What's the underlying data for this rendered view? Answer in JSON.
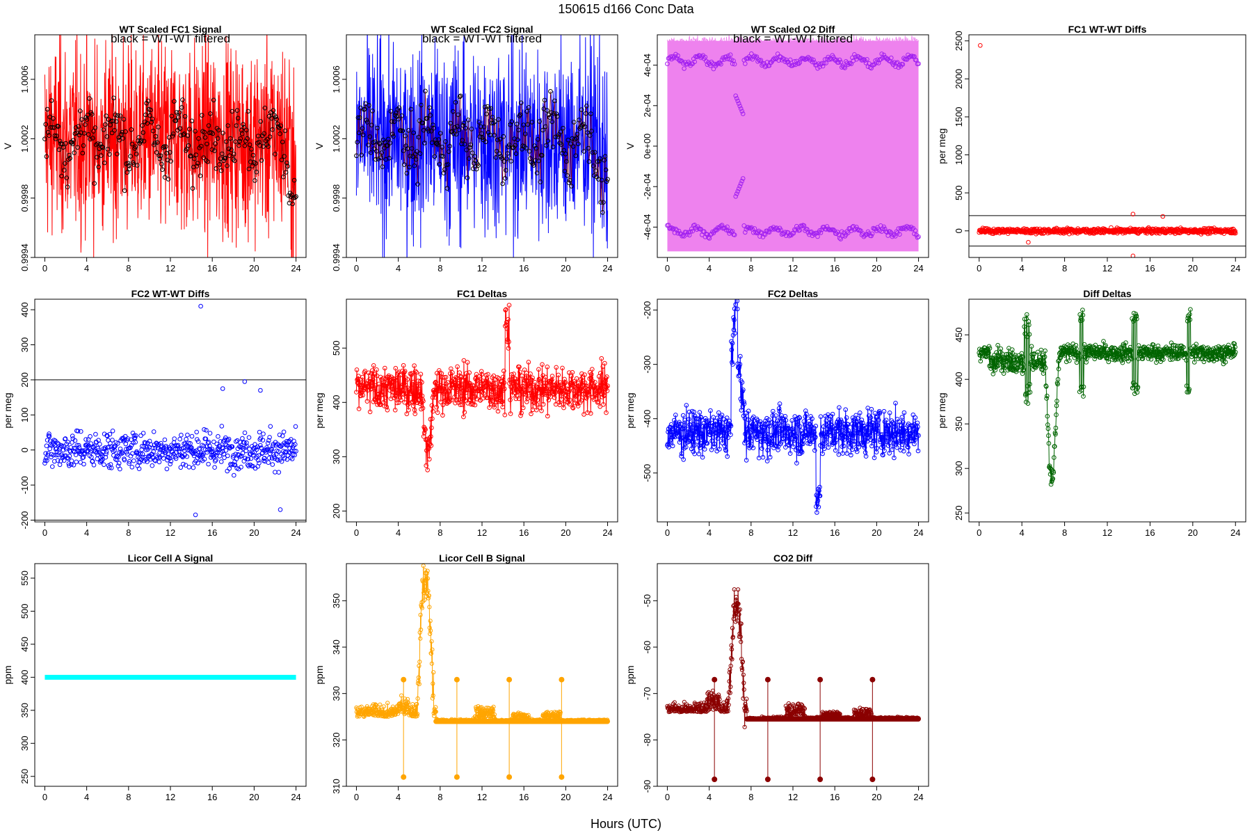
{
  "figure": {
    "title": "150615    d166    Conc Data",
    "xlabel": "Hours (UTC)"
  },
  "chart_data": [
    {
      "id": "p1",
      "type": "line",
      "title": "WT Scaled FC1 Signal",
      "note": "black = WT-WT filtered",
      "ylabel": "V",
      "xlim": [
        0,
        24
      ],
      "ylim": [
        0.9994,
        1.0009
      ],
      "yticks": [
        "0.9994",
        "0.9998",
        "1.0002",
        "1.0006"
      ],
      "ytick_values": [
        0.9994,
        0.9998,
        1.0002,
        1.0006
      ],
      "xticks": [
        0,
        4,
        8,
        12,
        16,
        20,
        24
      ],
      "color": "#ff0000",
      "series": [
        {
          "name": "signal",
          "style": "dense-noise",
          "mean": 1.0002,
          "spread": 0.00055
        },
        {
          "name": "filtered",
          "style": "black-circles",
          "mean": 1.0002,
          "spread": 0.00028
        }
      ]
    },
    {
      "id": "p2",
      "type": "line",
      "title": "WT Scaled FC2 Signal",
      "note": "black = WT-WT filtered",
      "ylabel": "V",
      "xlim": [
        0,
        24
      ],
      "ylim": [
        0.9994,
        1.0009
      ],
      "yticks": [
        "0.9994",
        "0.9998",
        "1.0002",
        "1.0006"
      ],
      "ytick_values": [
        0.9994,
        0.9998,
        1.0002,
        1.0006
      ],
      "xticks": [
        0,
        4,
        8,
        12,
        16,
        20,
        24
      ],
      "color": "#0000ff",
      "series": [
        {
          "name": "signal",
          "style": "dense-noise",
          "mean": 1.0002,
          "spread": 0.00055
        },
        {
          "name": "filtered",
          "style": "black-circles",
          "mean": 1.0002,
          "spread": 0.00028
        }
      ]
    },
    {
      "id": "p3",
      "type": "line",
      "title": "WT Scaled O2 Diff",
      "note": "black = WT-WT filtered",
      "ylabel": "V",
      "xlim": [
        0,
        24
      ],
      "ylim": [
        -0.00055,
        0.00055
      ],
      "yticks": [
        "-4e-04",
        "-2e-04",
        "0e+00",
        "2e-04",
        "4e-04"
      ],
      "ytick_values": [
        -0.0004,
        -0.0002,
        0,
        0.0002,
        0.0004
      ],
      "xticks": [
        0,
        4,
        8,
        12,
        16,
        20,
        24
      ],
      "color": "#ee82ee",
      "point_color": "#a020f0",
      "series": [
        {
          "name": "upper",
          "level": 0.00042
        },
        {
          "name": "lower",
          "level": -0.00042
        }
      ]
    },
    {
      "id": "p4",
      "type": "scatter",
      "title": "FC1 WT-WT Diffs",
      "ylabel": "per meg",
      "xlim": [
        0,
        24
      ],
      "ylim": [
        -350,
        2580
      ],
      "yticks": [
        "0",
        "500",
        "1000",
        "1500",
        "2000",
        "2500"
      ],
      "ytick_values": [
        0,
        500,
        1000,
        1500,
        2000,
        2500
      ],
      "xticks": [
        0,
        4,
        8,
        12,
        16,
        20,
        24
      ],
      "color": "#ff0000",
      "hlines": [
        200,
        -200
      ],
      "outliers": [
        {
          "x": 0.1,
          "y": 2440
        },
        {
          "x": 14.4,
          "y": -330
        },
        {
          "x": 14.4,
          "y": 220
        },
        {
          "x": 17.2,
          "y": 190
        },
        {
          "x": 4.6,
          "y": -150
        }
      ],
      "spread": 45
    },
    {
      "id": "p5",
      "type": "scatter",
      "title": "FC2 WT-WT Diffs",
      "ylabel": "per meg",
      "xlim": [
        0,
        24
      ],
      "ylim": [
        -205,
        430
      ],
      "yticks": [
        "-200",
        "-100",
        "0",
        "100",
        "200",
        "300",
        "400"
      ],
      "ytick_values": [
        -200,
        -100,
        0,
        100,
        200,
        300,
        400
      ],
      "xticks": [
        0,
        4,
        8,
        12,
        16,
        20,
        24
      ],
      "color": "#0000ff",
      "hlines": [
        200,
        -200
      ],
      "outliers": [
        {
          "x": 14.9,
          "y": 410
        },
        {
          "x": 19.1,
          "y": 195
        },
        {
          "x": 17.0,
          "y": 175
        },
        {
          "x": 20.6,
          "y": 170
        },
        {
          "x": 14.4,
          "y": -185
        },
        {
          "x": 22.5,
          "y": -170
        }
      ],
      "spread": 45
    },
    {
      "id": "p6",
      "type": "line",
      "title": "FC1 Deltas",
      "ylabel": "per meg",
      "xlim": [
        0,
        24
      ],
      "ylim": [
        180,
        590
      ],
      "yticks": [
        "200",
        "300",
        "400",
        "500"
      ],
      "ytick_values": [
        200,
        300,
        400,
        500
      ],
      "xticks": [
        0,
        4,
        8,
        12,
        16,
        20,
        24
      ],
      "color": "#ff0000",
      "base": 425,
      "spread": 35
    },
    {
      "id": "p7",
      "type": "line",
      "title": "FC2 Deltas",
      "ylabel": "per meg",
      "xlim": [
        0,
        24
      ],
      "ylim": [
        -590,
        -180
      ],
      "yticks": [
        "-500",
        "-400",
        "-300",
        "-200"
      ],
      "ytick_values": [
        -500,
        -400,
        -300,
        -200
      ],
      "xticks": [
        0,
        4,
        8,
        12,
        16,
        20,
        24
      ],
      "color": "#0000ff",
      "base": -425,
      "spread": 35
    },
    {
      "id": "p8",
      "type": "line",
      "title": "Diff Deltas",
      "ylabel": "per meg",
      "xlim": [
        0,
        24
      ],
      "ylim": [
        240,
        490
      ],
      "yticks": [
        "250",
        "300",
        "350",
        "400",
        "450"
      ],
      "ytick_values": [
        250,
        300,
        350,
        400,
        450
      ],
      "xticks": [
        0,
        4,
        8,
        12,
        16,
        20,
        24
      ],
      "color": "#006400",
      "base": 430,
      "spread": 8
    },
    {
      "id": "p9",
      "type": "line",
      "title": "Licor Cell A Signal",
      "ylabel": "ppm",
      "xlim": [
        0,
        24
      ],
      "ylim": [
        235,
        572
      ],
      "yticks": [
        "250",
        "300",
        "350",
        "400",
        "450",
        "500",
        "550"
      ],
      "ytick_values": [
        250,
        300,
        350,
        400,
        450,
        500,
        550
      ],
      "xticks": [
        0,
        4,
        8,
        12,
        16,
        20,
        24
      ],
      "color": "#00ffff",
      "constant": 400
    },
    {
      "id": "p10",
      "type": "line",
      "title": "Licor Cell B Signal",
      "ylabel": "ppm",
      "xlim": [
        0,
        24
      ],
      "ylim": [
        310,
        358
      ],
      "yticks": [
        "310",
        "320",
        "330",
        "340",
        "350"
      ],
      "ytick_values": [
        310,
        320,
        330,
        340,
        350
      ],
      "xticks": [
        0,
        4,
        8,
        12,
        16,
        20,
        24
      ],
      "color": "#ffa500",
      "base": 325,
      "after": 324,
      "spike_low": 312,
      "spike_high": 333
    },
    {
      "id": "p11",
      "type": "line",
      "title": "CO2 Diff",
      "ylabel": "ppm",
      "xlim": [
        0,
        24
      ],
      "ylim": [
        -90,
        -42
      ],
      "yticks": [
        "-90",
        "-80",
        "-70",
        "-60",
        "-50"
      ],
      "ytick_values": [
        -90,
        -80,
        -70,
        -60,
        -50
      ],
      "xticks": [
        0,
        4,
        8,
        12,
        16,
        20,
        24
      ],
      "color": "#8b0000",
      "base": -74,
      "after": -75.5,
      "spike_low": -88.5,
      "spike_high": -67
    }
  ]
}
